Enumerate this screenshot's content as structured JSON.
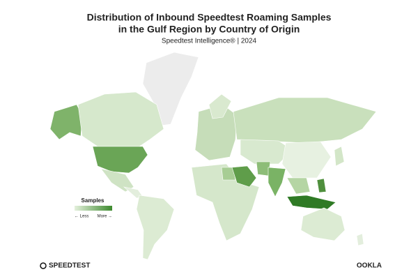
{
  "header": {
    "title": [
      "Distribution of Inbound Speedtest Roaming Samples",
      "in the Gulf Region by Country of Origin"
    ],
    "subtitle": "Speedtest Intelligence® | 2024"
  },
  "legend": {
    "title": "Samples",
    "low": "← Less",
    "high": "More →"
  },
  "footer": {
    "left_logo": "SPEEDTEST",
    "right_logo": "OOKLA"
  }
}
